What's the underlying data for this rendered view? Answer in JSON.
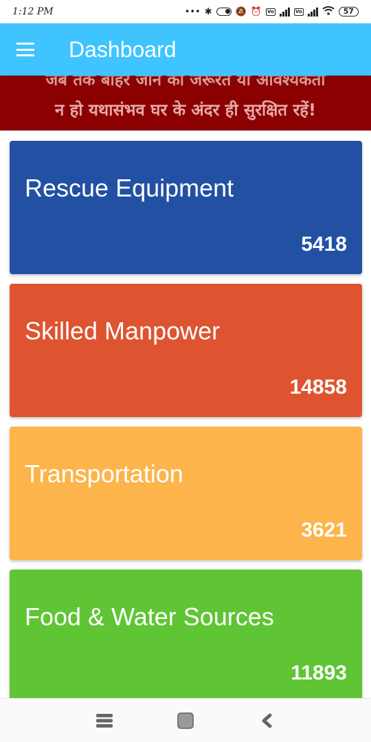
{
  "status_bar": {
    "time": "1:12 PM",
    "battery": "57"
  },
  "app_bar": {
    "title": "Dashboard"
  },
  "banner": {
    "line1": "जब तक बाहर जाने की जरूरत या आवश्यकता",
    "line2": "न हो यथासंभव घर के अंदर ही सुरक्षित रहें!"
  },
  "cards": [
    {
      "title": "Rescue Equipment",
      "count": "5418",
      "color": "#2251a3"
    },
    {
      "title": "Skilled Manpower",
      "count": "14858",
      "color": "#de5430"
    },
    {
      "title": "Transportation",
      "count": "3621",
      "color": "#fdb44b"
    },
    {
      "title": "Food & Water Sources",
      "count": "11893",
      "color": "#5fc534"
    }
  ],
  "nav_icons": [
    "recent-apps-icon",
    "home-icon",
    "back-icon"
  ]
}
